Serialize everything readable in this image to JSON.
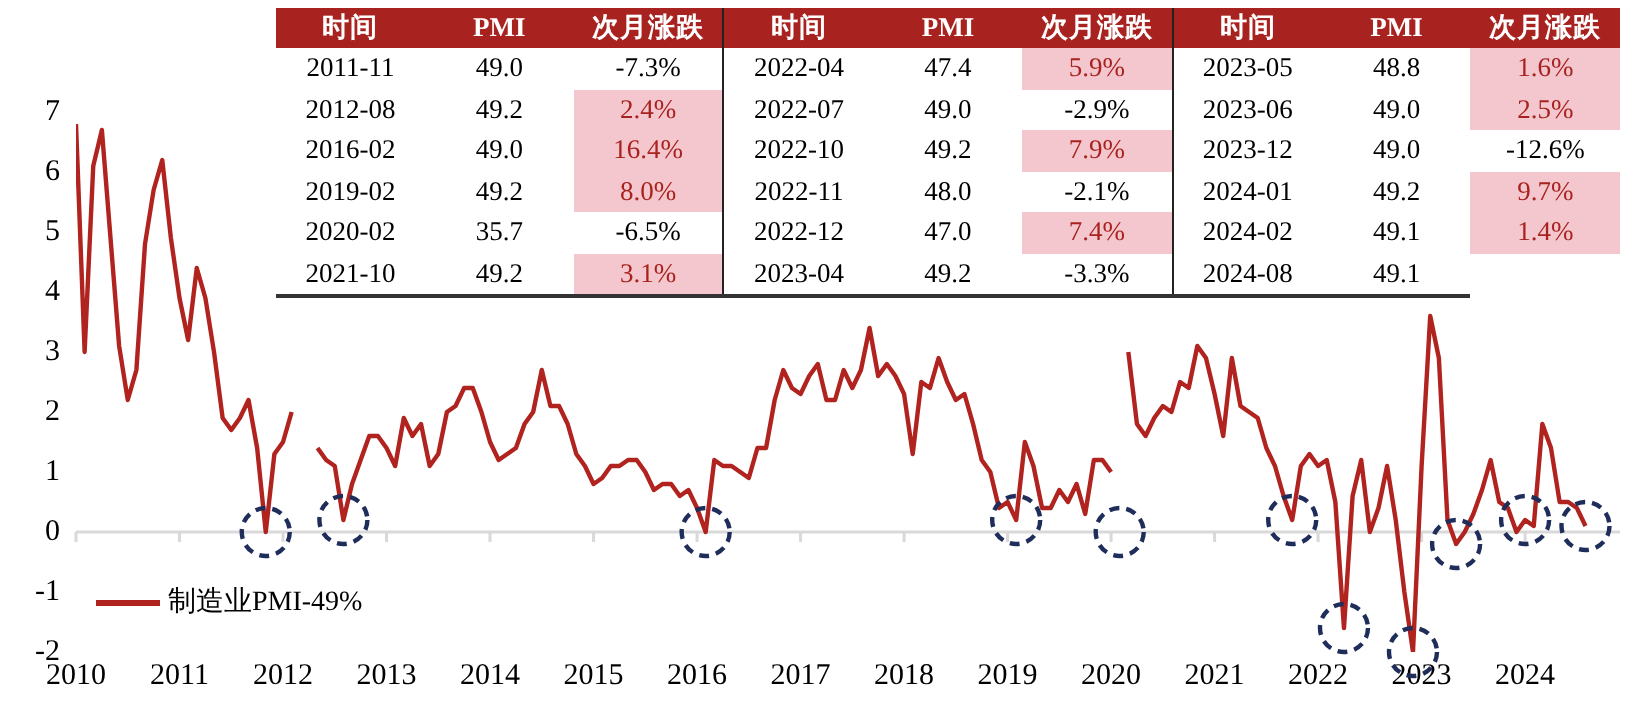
{
  "chart_data": {
    "type": "line",
    "x": [
      "2010-01",
      "2010-02",
      "2010-03",
      "2010-04",
      "2010-05",
      "2010-06",
      "2010-07",
      "2010-08",
      "2010-09",
      "2010-10",
      "2010-11",
      "2010-12",
      "2011-01",
      "2011-02",
      "2011-03",
      "2011-04",
      "2011-05",
      "2011-06",
      "2011-07",
      "2011-08",
      "2011-09",
      "2011-10",
      "2011-11",
      "2011-12",
      "2012-01",
      "2012-02",
      "2012-03",
      "2012-04",
      "2012-05",
      "2012-06",
      "2012-07",
      "2012-08",
      "2012-09",
      "2012-10",
      "2012-11",
      "2012-12",
      "2013-01",
      "2013-02",
      "2013-03",
      "2013-04",
      "2013-05",
      "2013-06",
      "2013-07",
      "2013-08",
      "2013-09",
      "2013-10",
      "2013-11",
      "2013-12",
      "2014-01",
      "2014-02",
      "2014-03",
      "2014-04",
      "2014-05",
      "2014-06",
      "2014-07",
      "2014-08",
      "2014-09",
      "2014-10",
      "2014-11",
      "2014-12",
      "2015-01",
      "2015-02",
      "2015-03",
      "2015-04",
      "2015-05",
      "2015-06",
      "2015-07",
      "2015-08",
      "2015-09",
      "2015-10",
      "2015-11",
      "2015-12",
      "2016-01",
      "2016-02",
      "2016-03",
      "2016-04",
      "2016-05",
      "2016-06",
      "2016-07",
      "2016-08",
      "2016-09",
      "2016-10",
      "2016-11",
      "2016-12",
      "2017-01",
      "2017-02",
      "2017-03",
      "2017-04",
      "2017-05",
      "2017-06",
      "2017-07",
      "2017-08",
      "2017-09",
      "2017-10",
      "2017-11",
      "2017-12",
      "2018-01",
      "2018-02",
      "2018-03",
      "2018-04",
      "2018-05",
      "2018-06",
      "2018-07",
      "2018-08",
      "2018-09",
      "2018-10",
      "2018-11",
      "2018-12",
      "2019-01",
      "2019-02",
      "2019-03",
      "2019-04",
      "2019-05",
      "2019-06",
      "2019-07",
      "2019-08",
      "2019-09",
      "2019-10",
      "2019-11",
      "2019-12",
      "2020-01",
      "2020-02",
      "2020-03",
      "2020-04",
      "2020-05",
      "2020-06",
      "2020-07",
      "2020-08",
      "2020-09",
      "2020-10",
      "2020-11",
      "2020-12",
      "2021-01",
      "2021-02",
      "2021-03",
      "2021-04",
      "2021-05",
      "2021-06",
      "2021-07",
      "2021-08",
      "2021-09",
      "2021-10",
      "2021-11",
      "2021-12",
      "2022-01",
      "2022-02",
      "2022-03",
      "2022-04",
      "2022-05",
      "2022-06",
      "2022-07",
      "2022-08",
      "2022-09",
      "2022-10",
      "2022-11",
      "2022-12",
      "2023-01",
      "2023-02",
      "2023-03",
      "2023-04",
      "2023-05",
      "2023-06",
      "2023-07",
      "2023-08",
      "2023-09",
      "2023-10",
      "2023-11",
      "2023-12",
      "2024-01",
      "2024-02",
      "2024-03",
      "2024-04",
      "2024-05",
      "2024-06",
      "2024-07",
      "2024-08"
    ],
    "series": [
      {
        "name": "制造业PMI-49%",
        "color": "#b0231f",
        "values": [
          6.8,
          3.0,
          6.1,
          6.7,
          4.9,
          3.1,
          2.2,
          2.7,
          4.8,
          5.7,
          6.2,
          4.9,
          3.9,
          3.2,
          4.4,
          3.9,
          3.0,
          1.9,
          1.7,
          1.9,
          2.2,
          1.4,
          0.0,
          1.3,
          1.5,
          2.0,
          null,
          null,
          1.4,
          1.2,
          1.1,
          0.2,
          0.8,
          1.2,
          1.6,
          1.6,
          1.4,
          1.1,
          1.9,
          1.6,
          1.8,
          1.1,
          1.3,
          2.0,
          2.1,
          2.4,
          2.4,
          2.0,
          1.5,
          1.2,
          1.3,
          1.4,
          1.8,
          2.0,
          2.7,
          2.1,
          2.1,
          1.8,
          1.3,
          1.1,
          0.8,
          0.9,
          1.1,
          1.1,
          1.2,
          1.2,
          1.0,
          0.7,
          0.8,
          0.8,
          0.6,
          0.7,
          0.4,
          0.0,
          1.2,
          1.1,
          1.1,
          1.0,
          0.9,
          1.4,
          1.4,
          2.2,
          2.7,
          2.4,
          2.3,
          2.6,
          2.8,
          2.2,
          2.2,
          2.7,
          2.4,
          2.7,
          3.4,
          2.6,
          2.8,
          2.6,
          2.3,
          1.3,
          2.5,
          2.4,
          2.9,
          2.5,
          2.2,
          2.3,
          1.8,
          1.2,
          1.0,
          0.4,
          0.5,
          0.2,
          1.5,
          1.1,
          0.4,
          0.4,
          0.7,
          0.5,
          0.8,
          0.3,
          1.2,
          1.2,
          1.0,
          null,
          3.0,
          1.8,
          1.6,
          1.9,
          2.1,
          2.0,
          2.5,
          2.4,
          3.1,
          2.9,
          2.3,
          1.6,
          2.9,
          2.1,
          2.0,
          1.9,
          1.4,
          1.1,
          0.6,
          0.2,
          1.1,
          1.3,
          1.1,
          1.2,
          0.5,
          -1.6,
          0.6,
          1.2,
          0.0,
          0.4,
          1.1,
          0.2,
          -1.0,
          -2.0,
          1.1,
          3.6,
          2.9,
          0.2,
          -0.2,
          0.0,
          0.3,
          0.7,
          1.2,
          0.5,
          0.4,
          0.0,
          0.2,
          0.1,
          1.8,
          1.4,
          0.5,
          0.5,
          0.4,
          0.1
        ]
      },
      {
        "type": "scatter",
        "color": "#1f2d5a",
        "marker": "circle",
        "x": [
          "2011-11",
          "2012-08",
          "2016-02",
          "2019-02",
          "2020-02",
          "2021-10",
          "2022-04",
          "2022-12",
          "2023-05",
          "2024-01",
          "2024-08"
        ],
        "values": [
          0.0,
          0.2,
          0.0,
          0.2,
          0.0,
          0.2,
          -1.6,
          -2.0,
          -0.2,
          0.2,
          0.1
        ]
      }
    ],
    "xlim": [
      "2010",
      "2024-12"
    ],
    "xticks": [
      "2010",
      "2011",
      "2012",
      "2013",
      "2014",
      "2015",
      "2016",
      "2017",
      "2018",
      "2019",
      "2020",
      "2021",
      "2022",
      "2023",
      "2024"
    ],
    "ylim": [
      -2,
      7
    ],
    "yticks": [
      -2,
      -1,
      0,
      1,
      2,
      3,
      4,
      5,
      6,
      7
    ],
    "legend": "bottom left",
    "annotations": [
      "时间",
      "PMI",
      "次月涨跌",
      "时间",
      "PMI",
      "次月涨跌",
      "时间",
      "PMI",
      "次月涨跌",
      "2011-11",
      "49.0",
      "-7.3%",
      "2022-04",
      "47.4",
      "5.9%",
      "2023-05",
      "48.8",
      "1.6%",
      "2012-08",
      "49.2",
      "2.4%",
      "2022-07",
      "49.0",
      "-2.9%",
      "2023-06",
      "49.0",
      "2.5%",
      "2016-02",
      "49.0",
      "16.4%",
      "2022-10",
      "49.2",
      "7.9%",
      "2023-12",
      "49.0",
      "-12.6%",
      "2019-02",
      "49.2",
      "8.0%",
      "2022-11",
      "48.0",
      "-2.1%",
      "2024-01",
      "49.2",
      "9.7%",
      "2020-02",
      "35.7",
      "-6.5%",
      "2022-12",
      "47.0",
      "7.4%",
      "2024-02",
      "49.1",
      "1.4%",
      "2021-10",
      "49.2",
      "3.1%",
      "2023-04",
      "49.2",
      "-3.3%",
      "2024-08",
      "49.1"
    ]
  }
}
